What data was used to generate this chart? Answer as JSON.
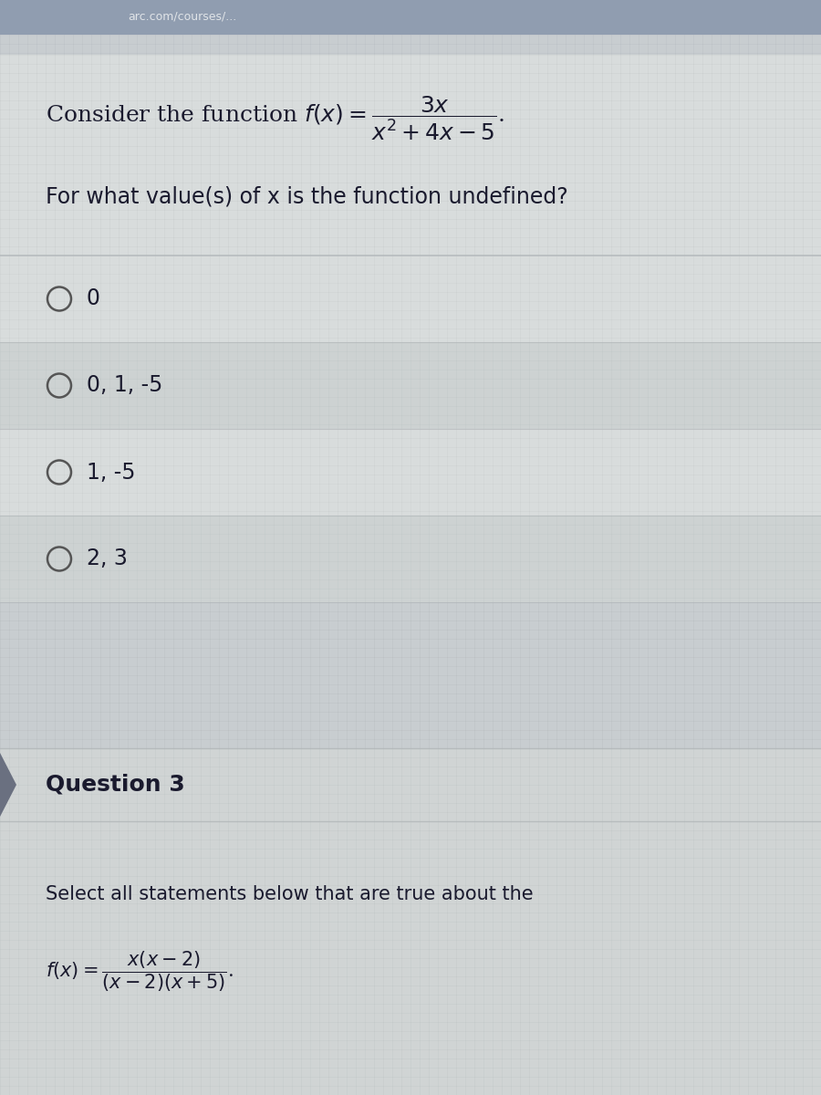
{
  "bg_color": "#c8cdd0",
  "panel_color": "#d4d8d8",
  "panel_light": "#dcdfe0",
  "panel_dark": "#c0c5c5",
  "q3_header_color": "#c8cccc",
  "q3_content_color": "#d0d4d4",
  "text_color": "#1a1a2e",
  "separator_color": "#b0b5b8",
  "circle_color": "#555555",
  "accent_color": "#6a7080",
  "top_bar_color": "#8090a8",
  "top_bar2_color": "#b0bac8",
  "options": [
    "0",
    "0, 1, -5",
    "1, -5",
    "2, 3"
  ],
  "question3_title": "Question 3",
  "question3_subtitle": "Select all statements below that are true about the",
  "top_strip_color": "#909db0"
}
